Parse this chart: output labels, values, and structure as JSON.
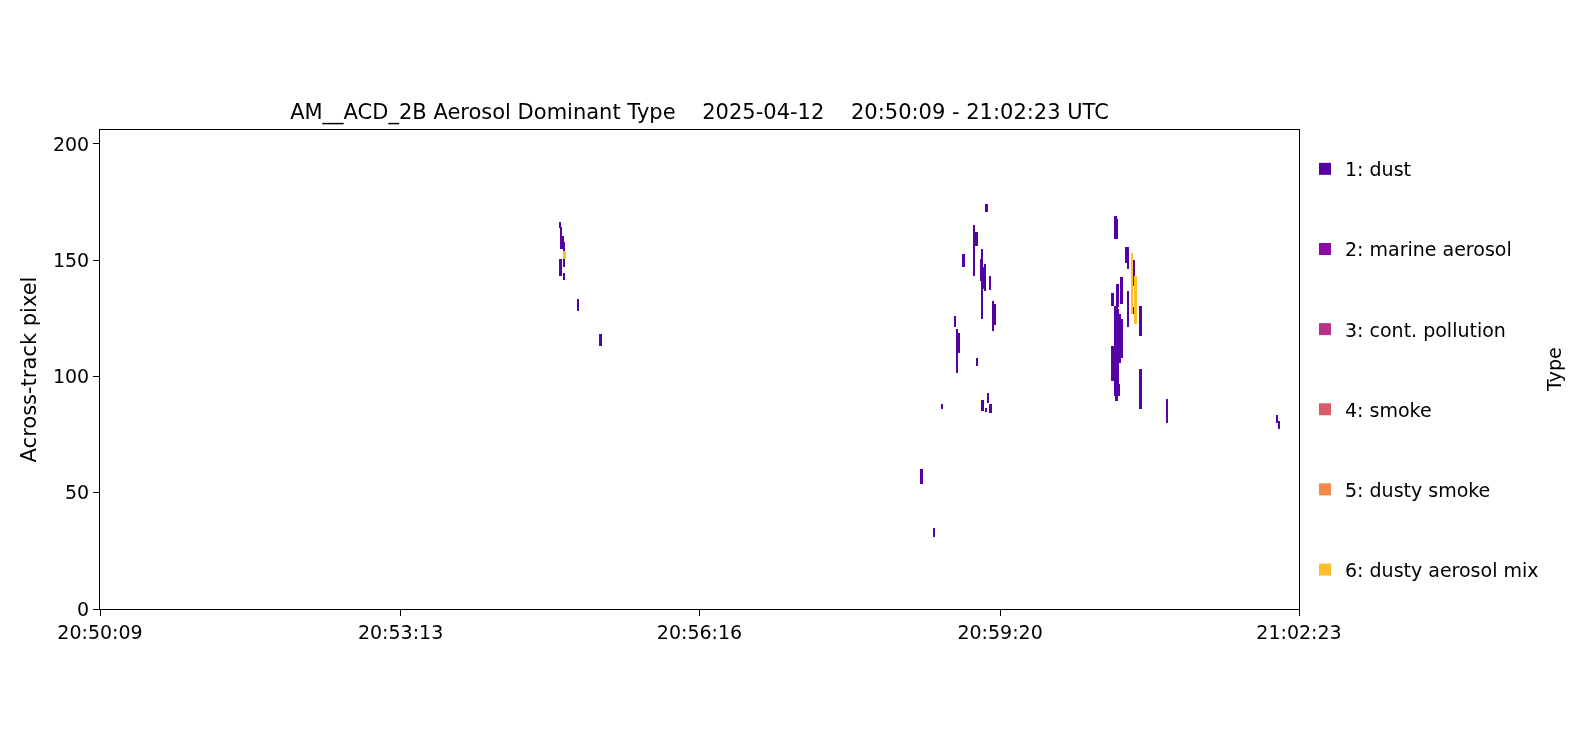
{
  "chart_data": {
    "type": "bar",
    "title": "AM__ACD_2B Aerosol Dominant Type    2025-04-12    20:50:09 - 21:02:23 UTC",
    "ylabel": "Across-track pixel",
    "legend": "right",
    "legend_title": "Type",
    "series": [
      {
        "name": "1: dust",
        "color": "#5402a3",
        "x": [
          20.91406,
          20.91418,
          20.91428,
          20.91457,
          20.91474,
          20.91475,
          20.91717,
          20.92098,
          20.97556,
          20.97771,
          20.97907,
          20.98123,
          20.98162,
          20.98191,
          20.98271,
          20.98451,
          20.98492,
          20.98502,
          20.98565,
          20.98587,
          20.98594,
          20.98611,
          20.98633,
          20.9865,
          20.98662,
          20.98689,
          20.98718,
          20.9873,
          20.98774,
          20.98798,
          21.00804,
          21.00805,
          21.00843,
          21.00855,
          21.00872,
          21.00877,
          21.00889,
          21.009,
          21.00911,
          21.00928,
          21.00957,
          21.00958,
          21.0103,
          21.01064,
          21.01065,
          21.01172,
          21.01173,
          21.0128,
          21.01281,
          21.01733,
          21.03598,
          21.03637
        ],
        "base": [
          163.8,
          143.3,
          154.8,
          154.8,
          146.9,
          141.4,
          128.2,
          113.0,
          53.6,
          31.1,
          86.2,
          121.1,
          101.7,
          110.3,
          146.9,
          143.3,
          156.2,
          104.5,
          141.1,
          124.7,
          85.1,
          137.7,
          136.8,
          84.7,
          170.8,
          88.7,
          137.3,
          84.4,
          119.6,
          122.3,
          130.4,
          98.1,
          91.6,
          159.1,
          89.4,
          159.1,
          129.7,
          93.0,
          91.6,
          105.9,
          131.1,
          108.1,
          149.0,
          146.2,
          121.1,
          139.0,
          126.8,
          117.4,
          85.9,
          80.1,
          80.1,
          77.3
        ],
        "values": [
          2.5,
          7.2,
          9.3,
          5.7,
          10.8,
          3.3,
          5.0,
          5.2,
          6.4,
          3.8,
          1.8,
          5.0,
          18.6,
          8.6,
          5.7,
          21.8,
          5.8,
          3.6,
          9.4,
          30.1,
          5.0,
          9.3,
          11.5,
          1.9,
          3.2,
          4.4,
          6.0,
          3.6,
          12.9,
          8.8,
          5.7,
          15.0,
          38.8,
          9.9,
          41.0,
          8.6,
          10.0,
          35.9,
          5.0,
          20.9,
          11.5,
          16.5,
          6.5,
          9.3,
          15.7,
          11.0,
          2.9,
          13.0,
          17.2,
          10.1,
          3.3,
          3.5
        ]
      },
      {
        "name": "2: marine aerosol",
        "color": "#8b0aa5"
      },
      {
        "name": "3: cont. pollution",
        "color": "#b83289"
      },
      {
        "name": "4: smoke",
        "color": "#db5c68"
      },
      {
        "name": "5: dusty smoke",
        "color": "#f48849"
      },
      {
        "name": "6: dusty aerosol mix",
        "color": "#febd2a",
        "x": [
          20.91486,
          21.01138,
          21.01195
        ],
        "base": [
          150.5,
          126.8,
          122.5
        ],
        "values": [
          3.5,
          26.1,
          20.8
        ]
      }
    ],
    "xlim": [
      20.83583,
      21.03972
    ],
    "xticks": [
      {
        "value": 20.83583,
        "label": "20:50:09"
      },
      {
        "value": 20.88694,
        "label": "20:53:13"
      },
      {
        "value": 20.93778,
        "label": "20:56:16"
      },
      {
        "value": 20.98889,
        "label": "20:59:20"
      },
      {
        "value": 21.03972,
        "label": "21:02:23"
      }
    ],
    "ylim": [
      0,
      206
    ],
    "yticks": [
      0,
      50,
      100,
      150,
      200
    ]
  }
}
